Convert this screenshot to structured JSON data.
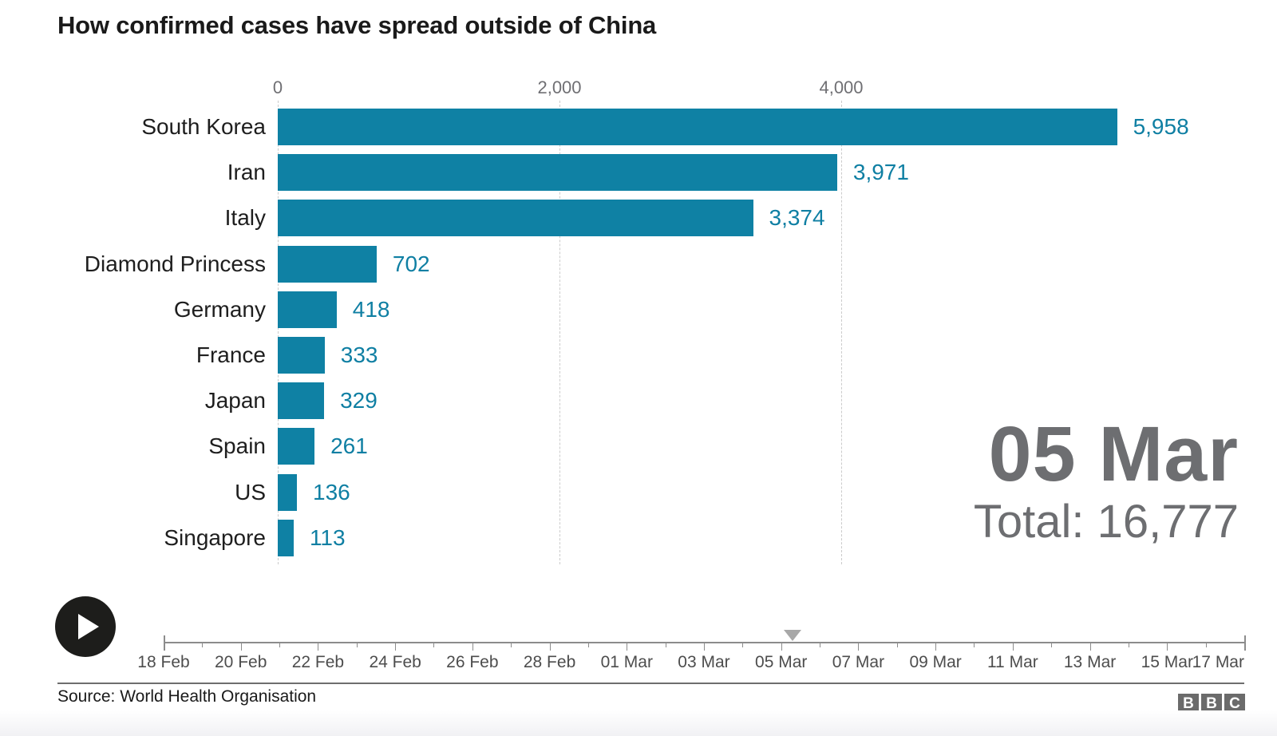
{
  "title": "How confirmed cases have spread outside of China",
  "chart_data": {
    "type": "bar",
    "orientation": "horizontal",
    "title": "How confirmed cases have spread outside of China",
    "categories": [
      "South Korea",
      "Iran",
      "Italy",
      "Diamond Princess",
      "Germany",
      "France",
      "Japan",
      "Spain",
      "US",
      "Singapore"
    ],
    "values": [
      5958,
      3971,
      3374,
      702,
      418,
      333,
      329,
      261,
      136,
      113
    ],
    "value_labels": [
      "5,958",
      "3,971",
      "3,374",
      "702",
      "418",
      "333",
      "329",
      "261",
      "136",
      "113"
    ],
    "x_axis_ticks": [
      {
        "value": 0,
        "label": "0"
      },
      {
        "value": 2000,
        "label": "2,000"
      },
      {
        "value": 4000,
        "label": "4,000"
      }
    ],
    "xlim": [
      0,
      6700
    ],
    "grid": "vertical-dashed",
    "legend": "none",
    "bar_color": "#0f81a4",
    "value_label_color": "#0f7fa3",
    "frame_date": "05 Mar",
    "frame_total": 16777
  },
  "date_display": {
    "date": "05 Mar",
    "total": "Total: 16,777"
  },
  "timeline": {
    "days_total": 28,
    "label_every_days": 2,
    "labels": [
      "18 Feb",
      "20 Feb",
      "22 Feb",
      "24 Feb",
      "26 Feb",
      "28 Feb",
      "01 Mar",
      "03 Mar",
      "05 Mar",
      "07 Mar",
      "09 Mar",
      "11 Mar",
      "13 Mar",
      "15 Mar",
      "17 Mar"
    ],
    "marker_day": 16.3,
    "marker_icon": "triangle-down-icon"
  },
  "controls": {
    "play_icon": "play-icon"
  },
  "footer": {
    "source": "Source: World Health Organisation",
    "logo_letters": [
      "B",
      "B",
      "C"
    ]
  }
}
